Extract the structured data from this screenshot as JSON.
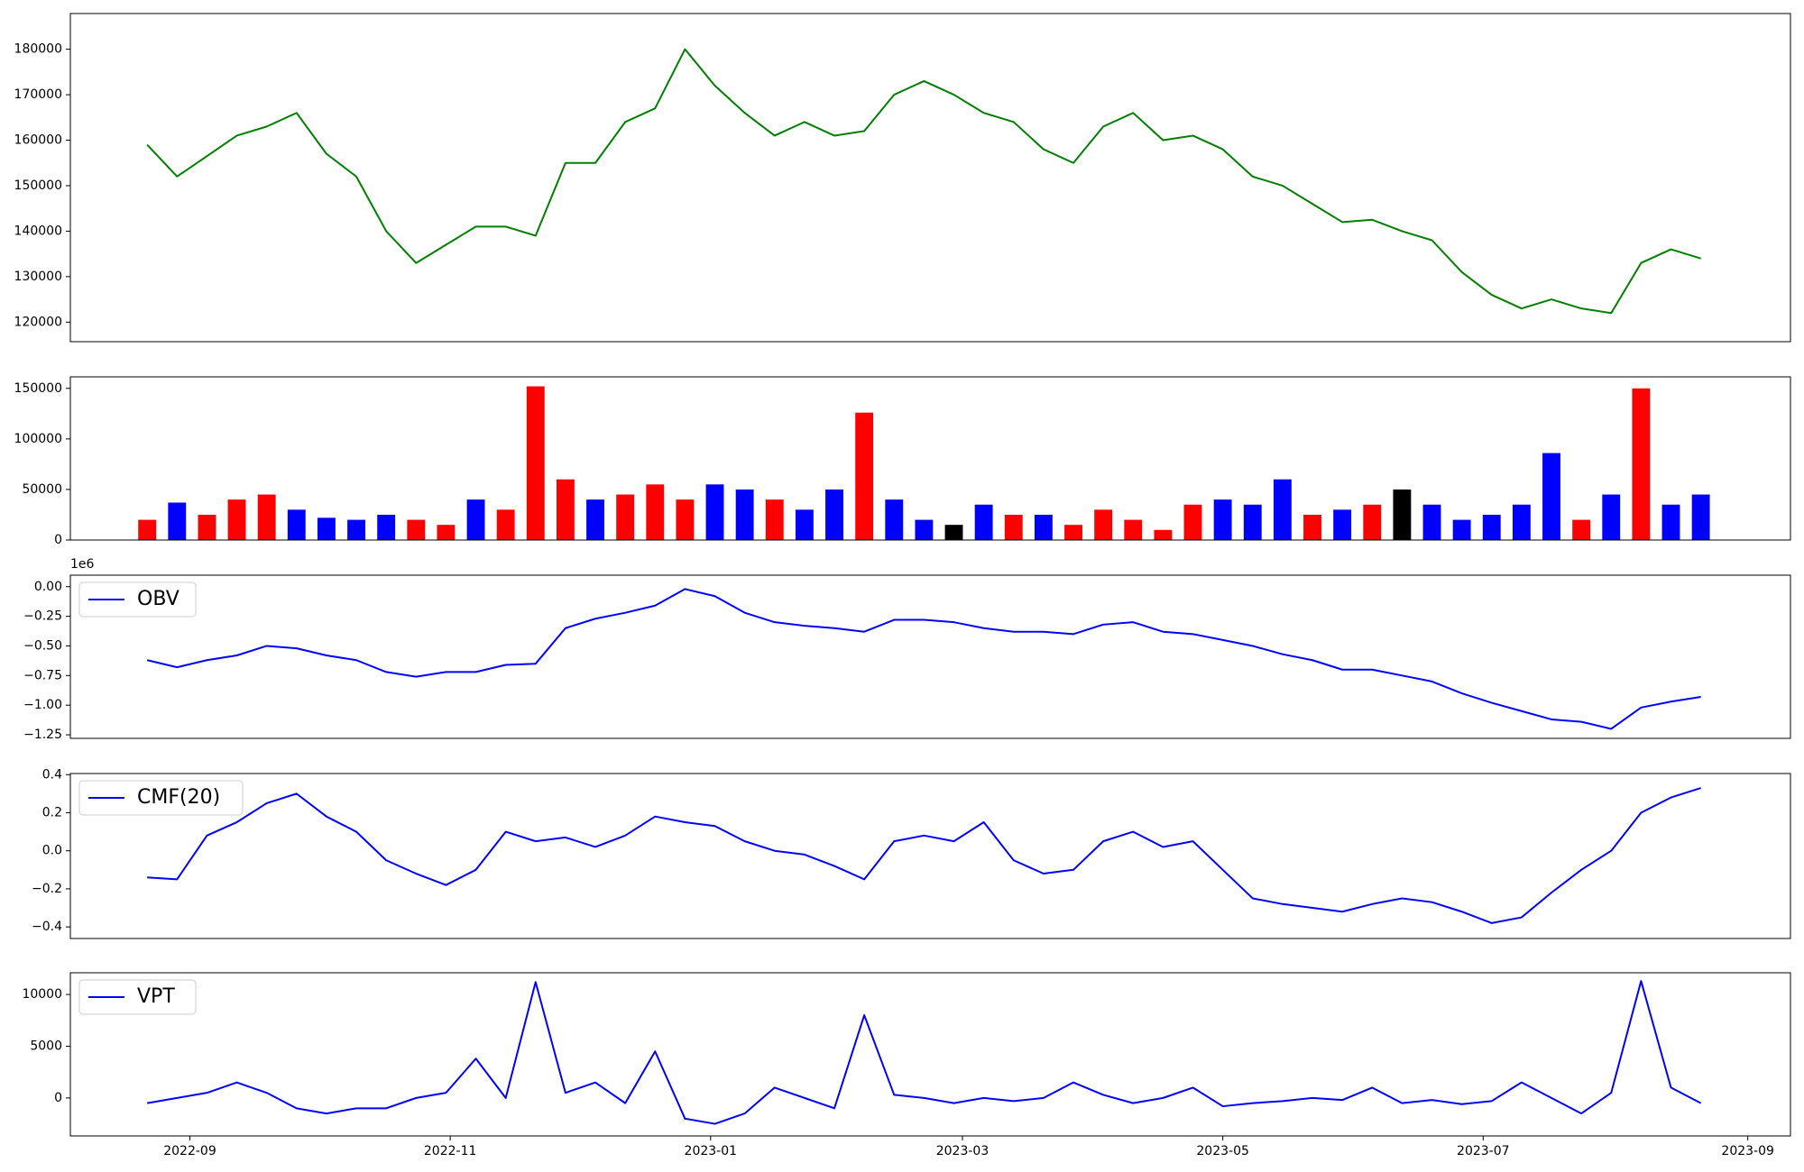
{
  "chart_data": [
    {
      "type": "line",
      "color": "#008000",
      "x": [
        "2022-08-22",
        "2022-08-29",
        "2022-09-05",
        "2022-09-12",
        "2022-09-19",
        "2022-09-26",
        "2022-10-03",
        "2022-10-10",
        "2022-10-17",
        "2022-10-24",
        "2022-10-31",
        "2022-11-07",
        "2022-11-14",
        "2022-11-21",
        "2022-11-28",
        "2022-12-05",
        "2022-12-12",
        "2022-12-19",
        "2022-12-26",
        "2023-01-02",
        "2023-01-09",
        "2023-01-16",
        "2023-01-23",
        "2023-01-30",
        "2023-02-06",
        "2023-02-13",
        "2023-02-20",
        "2023-02-27",
        "2023-03-06",
        "2023-03-13",
        "2023-03-20",
        "2023-03-27",
        "2023-04-03",
        "2023-04-10",
        "2023-04-17",
        "2023-04-24",
        "2023-05-01",
        "2023-05-08",
        "2023-05-15",
        "2023-05-22",
        "2023-05-29",
        "2023-06-05",
        "2023-06-12",
        "2023-06-19",
        "2023-06-26",
        "2023-07-03",
        "2023-07-10",
        "2023-07-17",
        "2023-07-24",
        "2023-07-31",
        "2023-08-07",
        "2023-08-14",
        "2023-08-21"
      ],
      "values": [
        159000,
        152000,
        156500,
        161000,
        163000,
        166000,
        157000,
        152000,
        140000,
        133000,
        137000,
        141000,
        141000,
        139000,
        155000,
        155000,
        164000,
        167000,
        180000,
        172000,
        166000,
        161000,
        164000,
        161000,
        162000,
        170000,
        173000,
        170000,
        166000,
        164000,
        158000,
        155000,
        163000,
        166000,
        160000,
        161000,
        158000,
        152000,
        150000,
        146000,
        142000,
        142500,
        140000,
        138000,
        131000,
        126000,
        123000,
        125000,
        123000,
        122000,
        133000,
        136000,
        134000
      ],
      "xlim": [
        "2022-08-04",
        "2023-09-11"
      ],
      "ylim": [
        115700,
        187850
      ],
      "yticks": [
        120000,
        130000,
        140000,
        150000,
        160000,
        170000,
        180000
      ]
    },
    {
      "type": "bar",
      "x": [
        "2022-08-22",
        "2022-08-29",
        "2022-09-05",
        "2022-09-12",
        "2022-09-19",
        "2022-09-26",
        "2022-10-03",
        "2022-10-10",
        "2022-10-17",
        "2022-10-24",
        "2022-10-31",
        "2022-11-07",
        "2022-11-14",
        "2022-11-21",
        "2022-11-28",
        "2022-12-05",
        "2022-12-12",
        "2022-12-19",
        "2022-12-26",
        "2023-01-02",
        "2023-01-09",
        "2023-01-16",
        "2023-01-23",
        "2023-01-30",
        "2023-02-06",
        "2023-02-13",
        "2023-02-20",
        "2023-02-27",
        "2023-03-06",
        "2023-03-13",
        "2023-03-20",
        "2023-03-27",
        "2023-04-03",
        "2023-04-10",
        "2023-04-17",
        "2023-04-24",
        "2023-05-01",
        "2023-05-08",
        "2023-05-15",
        "2023-05-22",
        "2023-05-29",
        "2023-06-05",
        "2023-06-12",
        "2023-06-19",
        "2023-06-26",
        "2023-07-03",
        "2023-07-10",
        "2023-07-17",
        "2023-07-24",
        "2023-07-31",
        "2023-08-07",
        "2023-08-14",
        "2023-08-21"
      ],
      "values": [
        20000,
        37000,
        25000,
        40000,
        45000,
        30000,
        22000,
        20000,
        25000,
        20000,
        15000,
        40000,
        30000,
        152000,
        60000,
        40000,
        45000,
        55000,
        40000,
        55000,
        50000,
        40000,
        30000,
        50000,
        126000,
        40000,
        20000,
        15000,
        35000,
        25000,
        25000,
        15000,
        30000,
        20000,
        10000,
        35000,
        40000,
        35000,
        60000,
        25000,
        30000,
        35000,
        50000,
        35000,
        20000,
        25000,
        35000,
        86000,
        20000,
        45000,
        150000,
        35000,
        45000
      ],
      "colors": [
        "red",
        "blue",
        "red",
        "red",
        "red",
        "blue",
        "blue",
        "blue",
        "blue",
        "red",
        "red",
        "blue",
        "red",
        "red",
        "red",
        "blue",
        "red",
        "red",
        "red",
        "blue",
        "blue",
        "red",
        "blue",
        "blue",
        "red",
        "blue",
        "blue",
        "black",
        "blue",
        "red",
        "blue",
        "red",
        "red",
        "red",
        "red",
        "red",
        "blue",
        "blue",
        "blue",
        "red",
        "blue",
        "red",
        "black",
        "blue",
        "blue",
        "blue",
        "blue",
        "blue",
        "red",
        "blue",
        "red",
        "blue",
        "blue"
      ],
      "xlim": [
        "2022-08-04",
        "2023-09-11"
      ],
      "ylim": [
        0,
        161400
      ],
      "yticks": [
        0,
        50000,
        100000,
        150000
      ]
    },
    {
      "type": "line",
      "legend": "upper left",
      "y_offset_label": "1e6",
      "x": [
        "2022-08-22",
        "2022-08-29",
        "2022-09-05",
        "2022-09-12",
        "2022-09-19",
        "2022-09-26",
        "2022-10-03",
        "2022-10-10",
        "2022-10-17",
        "2022-10-24",
        "2022-10-31",
        "2022-11-07",
        "2022-11-14",
        "2022-11-21",
        "2022-11-28",
        "2022-12-05",
        "2022-12-12",
        "2022-12-19",
        "2022-12-26",
        "2023-01-02",
        "2023-01-09",
        "2023-01-16",
        "2023-01-23",
        "2023-01-30",
        "2023-02-06",
        "2023-02-13",
        "2023-02-20",
        "2023-02-27",
        "2023-03-06",
        "2023-03-13",
        "2023-03-20",
        "2023-03-27",
        "2023-04-03",
        "2023-04-10",
        "2023-04-17",
        "2023-04-24",
        "2023-05-01",
        "2023-05-08",
        "2023-05-15",
        "2023-05-22",
        "2023-05-29",
        "2023-06-05",
        "2023-06-12",
        "2023-06-19",
        "2023-06-26",
        "2023-07-03",
        "2023-07-10",
        "2023-07-17",
        "2023-07-24",
        "2023-07-31",
        "2023-08-07",
        "2023-08-14",
        "2023-08-21"
      ],
      "series": [
        {
          "name": "OBV",
          "color": "#0000ff",
          "values": [
            -620000,
            -680000,
            -620000,
            -580000,
            -500000,
            -520000,
            -580000,
            -620000,
            -720000,
            -760000,
            -720000,
            -720000,
            -660000,
            -650000,
            -350000,
            -270000,
            -220000,
            -160000,
            -20000,
            -80000,
            -220000,
            -300000,
            -330000,
            -350000,
            -380000,
            -280000,
            -280000,
            -300000,
            -350000,
            -380000,
            -380000,
            -400000,
            -320000,
            -300000,
            -380000,
            -400000,
            -450000,
            -500000,
            -570000,
            -620000,
            -700000,
            -700000,
            -750000,
            -800000,
            -900000,
            -980000,
            -1050000,
            -1120000,
            -1140000,
            -1200000,
            -1020000,
            -970000,
            -930000
          ]
        }
      ],
      "xlim": [
        "2022-08-04",
        "2023-09-11"
      ],
      "ylim": [
        -1280000,
        97000
      ],
      "yticks": [
        {
          "value": -1250000,
          "label": "−1.25"
        },
        {
          "value": -1000000,
          "label": "−1.00"
        },
        {
          "value": -750000,
          "label": "−0.75"
        },
        {
          "value": -500000,
          "label": "−0.50"
        },
        {
          "value": -250000,
          "label": "−0.25"
        },
        {
          "value": 0,
          "label": "0.00"
        }
      ]
    },
    {
      "type": "line",
      "legend": "upper left",
      "x": [
        "2022-08-22",
        "2022-08-29",
        "2022-09-05",
        "2022-09-12",
        "2022-09-19",
        "2022-09-26",
        "2022-10-03",
        "2022-10-10",
        "2022-10-17",
        "2022-10-24",
        "2022-10-31",
        "2022-11-07",
        "2022-11-14",
        "2022-11-21",
        "2022-11-28",
        "2022-12-05",
        "2022-12-12",
        "2022-12-19",
        "2022-12-26",
        "2023-01-02",
        "2023-01-09",
        "2023-01-16",
        "2023-01-23",
        "2023-01-30",
        "2023-02-06",
        "2023-02-13",
        "2023-02-20",
        "2023-02-27",
        "2023-03-06",
        "2023-03-13",
        "2023-03-20",
        "2023-03-27",
        "2023-04-03",
        "2023-04-10",
        "2023-04-17",
        "2023-04-24",
        "2023-05-01",
        "2023-05-08",
        "2023-05-15",
        "2023-05-22",
        "2023-05-29",
        "2023-06-05",
        "2023-06-12",
        "2023-06-19",
        "2023-06-26",
        "2023-07-03",
        "2023-07-10",
        "2023-07-17",
        "2023-07-24",
        "2023-07-31",
        "2023-08-07",
        "2023-08-14",
        "2023-08-21"
      ],
      "series": [
        {
          "name": "CMF(20)",
          "color": "#0000ff",
          "values": [
            -0.14,
            -0.15,
            0.08,
            0.15,
            0.25,
            0.3,
            0.18,
            0.1,
            -0.05,
            -0.12,
            -0.18,
            -0.1,
            0.1,
            0.05,
            0.07,
            0.02,
            0.08,
            0.18,
            0.15,
            0.13,
            0.05,
            0.0,
            -0.02,
            -0.08,
            -0.15,
            0.05,
            0.08,
            0.05,
            0.15,
            -0.05,
            -0.12,
            -0.1,
            0.05,
            0.1,
            0.02,
            0.05,
            -0.1,
            -0.25,
            -0.28,
            -0.3,
            -0.32,
            -0.28,
            -0.25,
            -0.27,
            -0.32,
            -0.38,
            -0.35,
            -0.22,
            -0.1,
            0.0,
            0.2,
            0.28,
            0.33
          ]
        }
      ],
      "xlim": [
        "2022-08-04",
        "2023-09-11"
      ],
      "ylim": [
        -0.461,
        0.406
      ],
      "yticks": [
        {
          "value": -0.4,
          "label": "−0.4"
        },
        {
          "value": -0.2,
          "label": "−0.2"
        },
        {
          "value": 0,
          "label": "0.0"
        },
        0.2,
        0.4
      ]
    },
    {
      "type": "line",
      "legend": "upper left",
      "x": [
        "2022-08-22",
        "2022-08-29",
        "2022-09-05",
        "2022-09-12",
        "2022-09-19",
        "2022-09-26",
        "2022-10-03",
        "2022-10-10",
        "2022-10-17",
        "2022-10-24",
        "2022-10-31",
        "2022-11-07",
        "2022-11-14",
        "2022-11-21",
        "2022-11-28",
        "2022-12-05",
        "2022-12-12",
        "2022-12-19",
        "2022-12-26",
        "2023-01-02",
        "2023-01-09",
        "2023-01-16",
        "2023-01-23",
        "2023-01-30",
        "2023-02-06",
        "2023-02-13",
        "2023-02-20",
        "2023-02-27",
        "2023-03-06",
        "2023-03-13",
        "2023-03-20",
        "2023-03-27",
        "2023-04-03",
        "2023-04-10",
        "2023-04-17",
        "2023-04-24",
        "2023-05-01",
        "2023-05-08",
        "2023-05-15",
        "2023-05-22",
        "2023-05-29",
        "2023-06-05",
        "2023-06-12",
        "2023-06-19",
        "2023-06-26",
        "2023-07-03",
        "2023-07-10",
        "2023-07-17",
        "2023-07-24",
        "2023-07-31",
        "2023-08-07",
        "2023-08-14",
        "2023-08-21"
      ],
      "series": [
        {
          "name": "VPT",
          "color": "#0000ff",
          "values": [
            -500,
            0,
            500,
            1500,
            500,
            -1000,
            -1500,
            -1000,
            -1000,
            0,
            500,
            3800,
            0,
            11200,
            500,
            1500,
            -500,
            4500,
            -2000,
            -2500,
            -1500,
            1000,
            0,
            -1000,
            8000,
            300,
            0,
            -500,
            0,
            -300,
            0,
            1500,
            300,
            -500,
            0,
            1000,
            -800,
            -500,
            -300,
            0,
            -200,
            1000,
            -500,
            -200,
            -600,
            -300,
            1500,
            0,
            -1500,
            500,
            11300,
            1000,
            -500
          ]
        }
      ],
      "xlim": [
        "2022-08-04",
        "2023-09-11"
      ],
      "ylim": [
        -3670,
        12100
      ],
      "yticks": [
        0,
        5000,
        10000
      ],
      "xticks": [
        {
          "value": "2022-09-01",
          "label": "2022-09"
        },
        {
          "value": "2022-11-01",
          "label": "2022-11"
        },
        {
          "value": "2023-01-01",
          "label": "2023-01"
        },
        {
          "value": "2023-03-01",
          "label": "2023-03"
        },
        {
          "value": "2023-05-01",
          "label": "2023-05"
        },
        {
          "value": "2023-07-01",
          "label": "2023-07"
        },
        {
          "value": "2023-09-01",
          "label": "2023-09"
        }
      ]
    }
  ]
}
